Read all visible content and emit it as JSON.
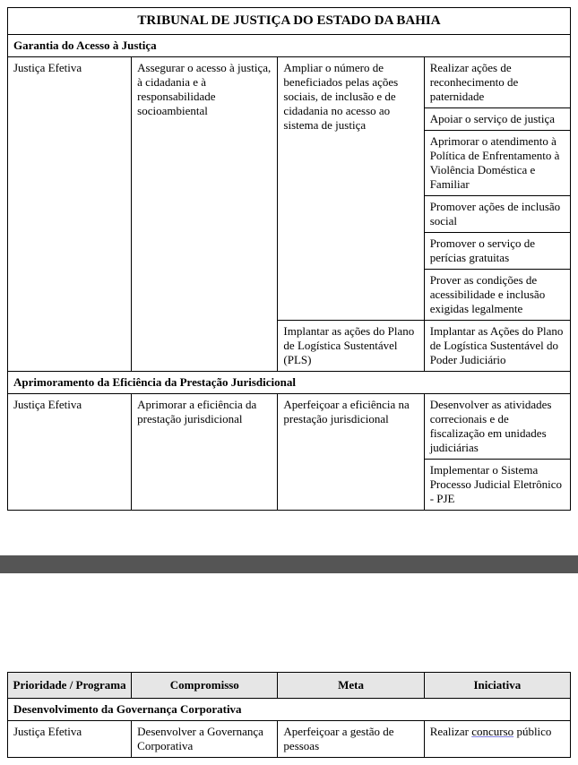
{
  "title": "TRIBUNAL DE JUSTIÇA DO ESTADO DA BAHIA",
  "section1": {
    "heading": "Garantia do Acesso à Justiça",
    "col1": "Justiça Efetiva",
    "col2": "Assegurar o acesso à justiça, à cidadania e à responsabilidade socioambiental",
    "meta1": "Ampliar o número de beneficiados pelas ações sociais, de inclusão e de cidadania no acesso ao sistema de justiça",
    "inic1": "Realizar ações de reconhecimento de paternidade",
    "inic2": "Apoiar o serviço de justiça",
    "inic3": "Aprimorar o atendimento à Política de Enfrentamento à Violência Doméstica e Familiar",
    "inic4": "Promover ações de inclusão social",
    "inic5": "Promover o serviço de perícias gratuitas",
    "inic6": "Prover as condições de acessibilidade e inclusão exigidas legalmente",
    "meta2": "Implantar as ações do Plano de Logística Sustentável (PLS)",
    "inic7": "Implantar as Ações do Plano de Logística Sustentável do Poder Judiciário"
  },
  "section2": {
    "heading": "Aprimoramento da Eficiência da Prestação Jurisdicional",
    "col1": "Justiça Efetiva",
    "col2": "Aprimorar a eficiência da prestação jurisdicional",
    "meta1": "Aperfeiçoar a eficiência na prestação jurisdicional",
    "inic1": "Desenvolver as atividades correcionais e de fiscalização em unidades judiciárias",
    "inic2": "Implementar o Sistema Processo Judicial Eletrônico - PJE"
  },
  "headers": {
    "h1": "Prioridade / Programa",
    "h2": "Compromisso",
    "h3": "Meta",
    "h4": "Iniciativa"
  },
  "section3": {
    "heading": "Desenvolvimento da Governança Corporativa",
    "col1": "Justiça Efetiva",
    "col2": "Desenvolver a Governança Corporativa",
    "meta1": "Aperfeiçoar a gestão de pessoas",
    "inic1_pre": "Realizar ",
    "inic1_u": "concurso",
    "inic1_post": " público"
  }
}
